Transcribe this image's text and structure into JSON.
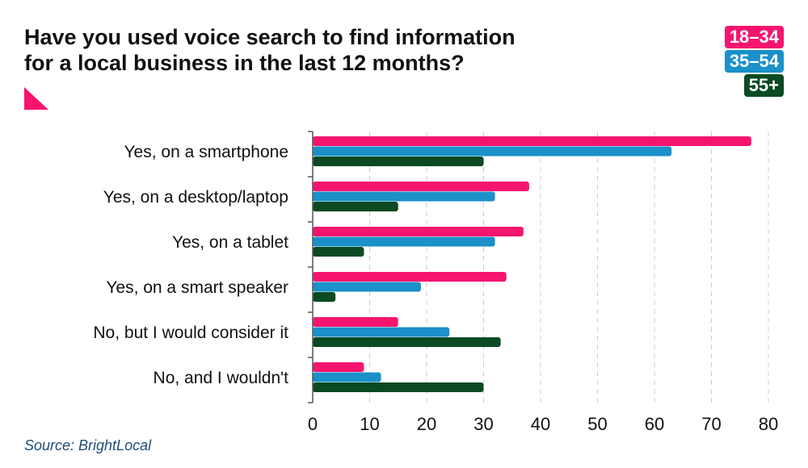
{
  "header": {
    "title_line1": "Have you used voice search to find information",
    "title_line2": "for a local business in the last 12 months?"
  },
  "colors": {
    "accent": "#f5156f",
    "series": [
      "#f5156f",
      "#1b90c9",
      "#0b4a23"
    ],
    "axis": "#555555",
    "grid": "#cccccc"
  },
  "footer": {
    "source": "Source: BrightLocal"
  },
  "chart_data": {
    "type": "bar",
    "orientation": "horizontal",
    "title": "Have you used voice search to find information for a local business in the last 12 months?",
    "categories": [
      "Yes, on a smartphone",
      "Yes, on a desktop/laptop",
      "Yes, on a tablet",
      "Yes, on a smart speaker",
      "No, but I would consider it",
      "No, and I wouldn't"
    ],
    "series": [
      {
        "name": "18–34",
        "values": [
          77,
          38,
          37,
          34,
          15,
          9
        ]
      },
      {
        "name": "35–54",
        "values": [
          63,
          32,
          32,
          19,
          24,
          12
        ]
      },
      {
        "name": "55+",
        "values": [
          30,
          15,
          9,
          4,
          33,
          30
        ]
      }
    ],
    "xlim": [
      0,
      80
    ],
    "xticks": [
      "0",
      "10",
      "20",
      "30",
      "40",
      "50",
      "60",
      "70",
      "80"
    ],
    "grid": "vertical dashed",
    "legend_position": "top-right"
  }
}
